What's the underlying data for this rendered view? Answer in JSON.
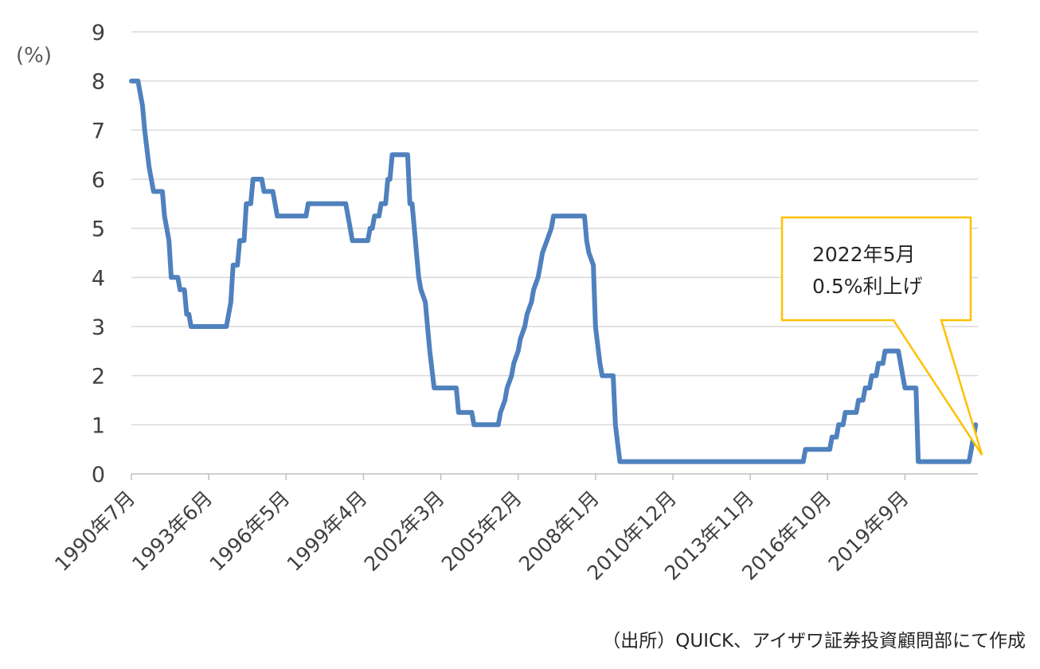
{
  "chart_data": {
    "type": "line",
    "title": "",
    "xlabel": "",
    "ylabel": "(%)",
    "ylim": [
      0,
      9
    ],
    "yticks": [
      "0",
      "1",
      "2",
      "3",
      "4",
      "5",
      "6",
      "7",
      "8",
      "9"
    ],
    "xlim": [
      "1990-07",
      "2022-06"
    ],
    "xticks": [
      {
        "label": "1990年7月",
        "date": "1990-07"
      },
      {
        "label": "1993年6月",
        "date": "1993-06"
      },
      {
        "label": "1996年5月",
        "date": "1996-05"
      },
      {
        "label": "1999年4月",
        "date": "1999-04"
      },
      {
        "label": "2002年3月",
        "date": "2002-03"
      },
      {
        "label": "2005年2月",
        "date": "2005-02"
      },
      {
        "label": "2008年1月",
        "date": "2008-01"
      },
      {
        "label": "2010年12月",
        "date": "2010-12"
      },
      {
        "label": "2013年11月",
        "date": "2013-11"
      },
      {
        "label": "2016年10月",
        "date": "2016-10"
      },
      {
        "label": "2019年9月",
        "date": "2019-09"
      }
    ],
    "grid": true,
    "line_color": "#4f81bd",
    "series": [
      {
        "points": [
          [
            "1990-07",
            8.0
          ],
          [
            "1990-10",
            8.0
          ],
          [
            "1990-11",
            7.75
          ],
          [
            "1990-12",
            7.5
          ],
          [
            "1991-01",
            7.0
          ],
          [
            "1991-03",
            6.25
          ],
          [
            "1991-04",
            6.0
          ],
          [
            "1991-05",
            5.75
          ],
          [
            "1991-09",
            5.75
          ],
          [
            "1991-10",
            5.25
          ],
          [
            "1991-12",
            4.75
          ],
          [
            "1992-01",
            4.0
          ],
          [
            "1992-04",
            4.0
          ],
          [
            "1992-05",
            3.75
          ],
          [
            "1992-07",
            3.75
          ],
          [
            "1992-08",
            3.25
          ],
          [
            "1992-09",
            3.25
          ],
          [
            "1992-10",
            3.0
          ],
          [
            "1994-02",
            3.0
          ],
          [
            "1994-03",
            3.25
          ],
          [
            "1994-04",
            3.5
          ],
          [
            "1994-05",
            4.25
          ],
          [
            "1994-07",
            4.25
          ],
          [
            "1994-08",
            4.75
          ],
          [
            "1994-10",
            4.75
          ],
          [
            "1994-11",
            5.5
          ],
          [
            "1995-01",
            5.5
          ],
          [
            "1995-02",
            6.0
          ],
          [
            "1995-06",
            6.0
          ],
          [
            "1995-07",
            5.75
          ],
          [
            "1995-11",
            5.75
          ],
          [
            "1995-12",
            5.5
          ],
          [
            "1996-01",
            5.25
          ],
          [
            "1997-02",
            5.25
          ],
          [
            "1997-03",
            5.5
          ],
          [
            "1998-08",
            5.5
          ],
          [
            "1998-09",
            5.25
          ],
          [
            "1998-10",
            5.0
          ],
          [
            "1998-11",
            4.75
          ],
          [
            "1999-06",
            4.75
          ],
          [
            "1999-07",
            5.0
          ],
          [
            "1999-08",
            5.0
          ],
          [
            "1999-09",
            5.25
          ],
          [
            "1999-11",
            5.25
          ],
          [
            "1999-12",
            5.5
          ],
          [
            "2000-02",
            5.5
          ],
          [
            "2000-03",
            6.0
          ],
          [
            "2000-04",
            6.0
          ],
          [
            "2000-05",
            6.5
          ],
          [
            "2000-12",
            6.5
          ],
          [
            "2001-01",
            5.5
          ],
          [
            "2001-02",
            5.5
          ],
          [
            "2001-03",
            5.0
          ],
          [
            "2001-04",
            4.5
          ],
          [
            "2001-05",
            4.0
          ],
          [
            "2001-06",
            3.75
          ],
          [
            "2001-08",
            3.5
          ],
          [
            "2001-09",
            3.0
          ],
          [
            "2001-10",
            2.5
          ],
          [
            "2001-12",
            1.75
          ],
          [
            "2002-10",
            1.75
          ],
          [
            "2002-11",
            1.25
          ],
          [
            "2003-05",
            1.25
          ],
          [
            "2003-06",
            1.0
          ],
          [
            "2004-05",
            1.0
          ],
          [
            "2004-06",
            1.25
          ],
          [
            "2004-08",
            1.5
          ],
          [
            "2004-09",
            1.75
          ],
          [
            "2004-11",
            2.0
          ],
          [
            "2004-12",
            2.25
          ],
          [
            "2005-02",
            2.5
          ],
          [
            "2005-03",
            2.75
          ],
          [
            "2005-05",
            3.0
          ],
          [
            "2005-06",
            3.25
          ],
          [
            "2005-08",
            3.5
          ],
          [
            "2005-09",
            3.75
          ],
          [
            "2005-11",
            4.0
          ],
          [
            "2005-12",
            4.25
          ],
          [
            "2006-01",
            4.5
          ],
          [
            "2006-03",
            4.75
          ],
          [
            "2006-05",
            5.0
          ],
          [
            "2006-06",
            5.25
          ],
          [
            "2007-08",
            5.25
          ],
          [
            "2007-09",
            4.75
          ],
          [
            "2007-10",
            4.5
          ],
          [
            "2007-12",
            4.25
          ],
          [
            "2008-01",
            3.0
          ],
          [
            "2008-03",
            2.25
          ],
          [
            "2008-04",
            2.0
          ],
          [
            "2008-09",
            2.0
          ],
          [
            "2008-10",
            1.0
          ],
          [
            "2008-12",
            0.25
          ],
          [
            "2015-11",
            0.25
          ],
          [
            "2015-12",
            0.5
          ],
          [
            "2016-11",
            0.5
          ],
          [
            "2016-12",
            0.75
          ],
          [
            "2017-02",
            0.75
          ],
          [
            "2017-03",
            1.0
          ],
          [
            "2017-05",
            1.0
          ],
          [
            "2017-06",
            1.25
          ],
          [
            "2017-11",
            1.25
          ],
          [
            "2017-12",
            1.5
          ],
          [
            "2018-02",
            1.5
          ],
          [
            "2018-03",
            1.75
          ],
          [
            "2018-05",
            1.75
          ],
          [
            "2018-06",
            2.0
          ],
          [
            "2018-08",
            2.0
          ],
          [
            "2018-09",
            2.25
          ],
          [
            "2018-11",
            2.25
          ],
          [
            "2018-12",
            2.5
          ],
          [
            "2019-06",
            2.5
          ],
          [
            "2019-07",
            2.25
          ],
          [
            "2019-08",
            2.0
          ],
          [
            "2019-09",
            1.75
          ],
          [
            "2020-02",
            1.75
          ],
          [
            "2020-03",
            0.25
          ],
          [
            "2022-02",
            0.25
          ],
          [
            "2022-03",
            0.5
          ],
          [
            "2022-05",
            1.0
          ]
        ]
      }
    ],
    "annotation": {
      "lines": [
        "2022年5月",
        "0.5%利上げ"
      ],
      "border_color": "#ffc000",
      "target": [
        "2022-05",
        1.0
      ]
    }
  },
  "source_note": "（出所）QUICK、アイザワ証券投資顧問部にて作成"
}
